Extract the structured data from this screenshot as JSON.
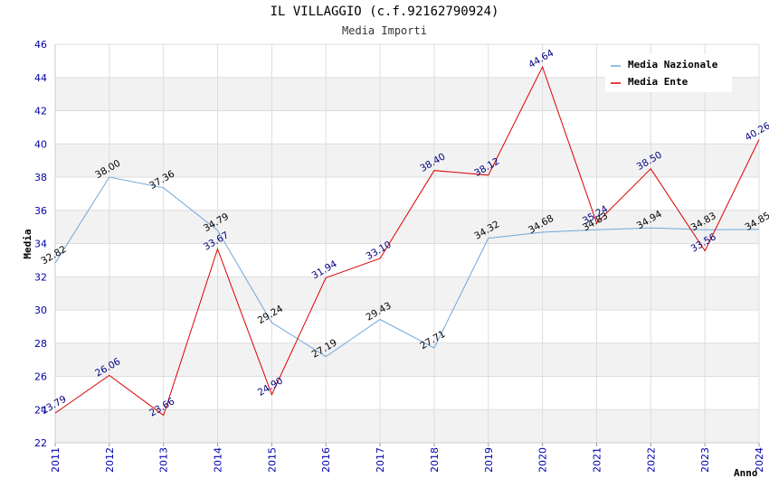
{
  "chart_data": {
    "type": "line",
    "title": "IL VILLAGGIO (c.f.92162790924)",
    "subtitle": "Media Importi",
    "xlabel": "Anno",
    "ylabel": "Media",
    "ylim": [
      22,
      46
    ],
    "yticks": [
      22,
      24,
      26,
      28,
      30,
      32,
      34,
      36,
      38,
      40,
      42,
      44,
      46
    ],
    "categories": [
      "2011",
      "2012",
      "2013",
      "2014",
      "2015",
      "2016",
      "2017",
      "2018",
      "2019",
      "2020",
      "2021",
      "2022",
      "2023",
      "2024"
    ],
    "series": [
      {
        "name": "Media Nazionale",
        "color": "#6fa8dc",
        "label_color": "#000000",
        "values": [
          32.82,
          38.0,
          37.36,
          34.79,
          29.24,
          27.19,
          29.43,
          27.71,
          34.32,
          34.68,
          34.83,
          34.94,
          34.83,
          34.85
        ],
        "labels": [
          "32.82",
          "38.00",
          "37.36",
          "34.79",
          "29.24",
          "27.19",
          "29.43",
          "27.71",
          "34.32",
          "34.68",
          "34.83",
          "34.94",
          "34.83",
          "34.85"
        ]
      },
      {
        "name": "Media Ente",
        "color": "#dd0000",
        "label_color": "#000080",
        "values": [
          23.79,
          26.06,
          23.66,
          33.67,
          24.9,
          31.94,
          33.1,
          38.4,
          38.12,
          44.64,
          35.24,
          38.5,
          33.56,
          40.26
        ],
        "labels": [
          "23.79",
          "26.06",
          "23.66",
          "33.67",
          "24.90",
          "31.94",
          "33.10",
          "38.40",
          "38.12",
          "44.64",
          "35.24",
          "38.50",
          "33.56",
          "40.26"
        ]
      }
    ],
    "grid": true,
    "legend": "top-right"
  }
}
